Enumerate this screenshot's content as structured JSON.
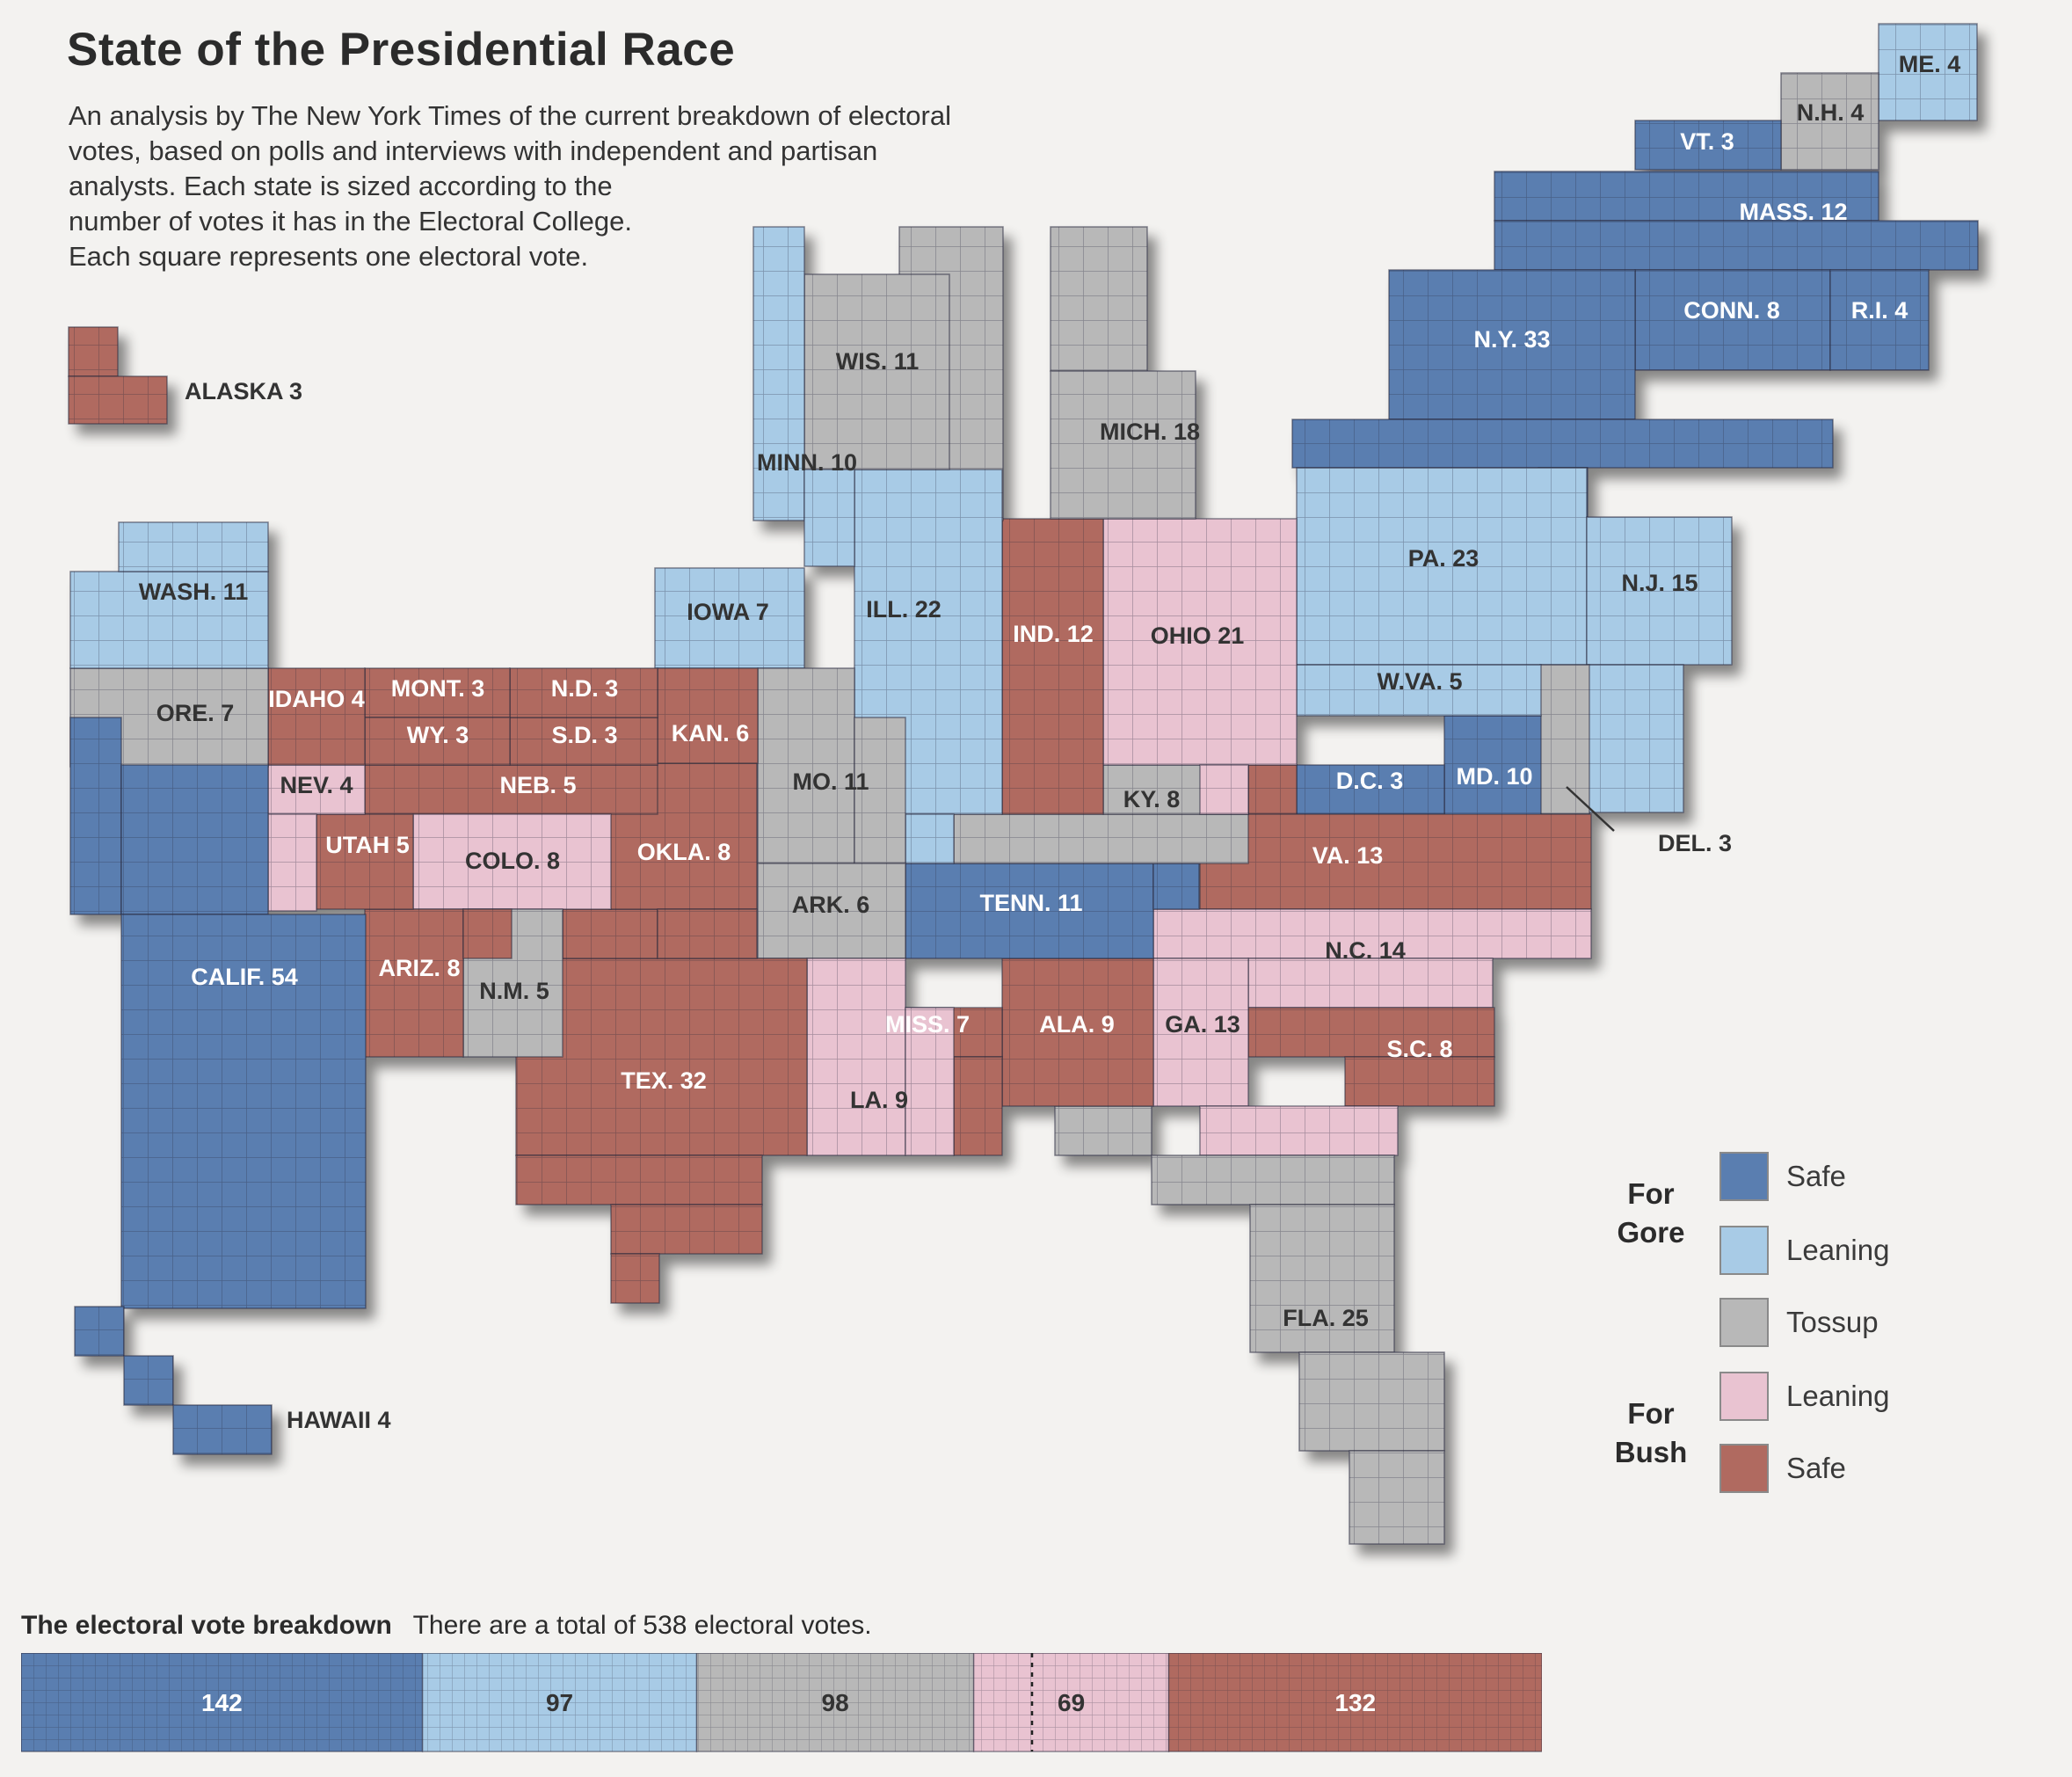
{
  "title": "State of the Presidential Race",
  "description": [
    "An analysis by The New York Times of the current breakdown of electoral",
    "votes, based on polls and interviews with independent and partisan",
    "analysts. Each state is sized according to the",
    "number of votes it has in the Electoral College.",
    "Each square represents one electoral vote."
  ],
  "colors": {
    "gore_safe": "#5a7eb0",
    "gore_leaning": "#a8cbe6",
    "tossup": "#b8b8b8",
    "bush_leaning": "#e9c3d1",
    "bush_safe": "#b06a60"
  },
  "legend": {
    "gore_heading": "For Gore",
    "bush_heading": "For Bush",
    "items": [
      {
        "key": "gore_safe",
        "label": "Safe"
      },
      {
        "key": "gore_leaning",
        "label": "Leaning"
      },
      {
        "key": "tossup",
        "label": "Tossup"
      },
      {
        "key": "bush_leaning",
        "label": "Leaning"
      },
      {
        "key": "bush_safe",
        "label": "Safe"
      }
    ]
  },
  "states": [
    {
      "label": "ME. 4",
      "status": "gore_leaning"
    },
    {
      "label": "N.H. 4",
      "status": "tossup"
    },
    {
      "label": "VT. 3",
      "status": "gore_safe"
    },
    {
      "label": "MASS. 12",
      "status": "gore_safe"
    },
    {
      "label": "CONN. 8",
      "status": "gore_safe"
    },
    {
      "label": "R.I. 4",
      "status": "gore_safe"
    },
    {
      "label": "N.Y. 33",
      "status": "gore_safe"
    },
    {
      "label": "PA. 23",
      "status": "gore_leaning"
    },
    {
      "label": "N.J. 15",
      "status": "gore_leaning"
    },
    {
      "label": "DEL. 3",
      "status": "tossup"
    },
    {
      "label": "MD. 10",
      "status": "gore_safe"
    },
    {
      "label": "D.C. 3",
      "status": "gore_safe"
    },
    {
      "label": "W.VA. 5",
      "status": "gore_leaning"
    },
    {
      "label": "VA. 13",
      "status": "bush_safe"
    },
    {
      "label": "N.C. 14",
      "status": "bush_leaning"
    },
    {
      "label": "S.C. 8",
      "status": "bush_safe"
    },
    {
      "label": "GA. 13",
      "status": "bush_leaning"
    },
    {
      "label": "FLA. 25",
      "status": "tossup"
    },
    {
      "label": "ALA. 9",
      "status": "bush_safe"
    },
    {
      "label": "MISS. 7",
      "status": "bush_safe"
    },
    {
      "label": "TENN. 11",
      "status": "gore_safe"
    },
    {
      "label": "KY. 8",
      "status": "tossup"
    },
    {
      "label": "OHIO 21",
      "status": "bush_leaning"
    },
    {
      "label": "IND. 12",
      "status": "bush_safe"
    },
    {
      "label": "MICH. 18",
      "status": "tossup"
    },
    {
      "label": "ILL. 22",
      "status": "gore_leaning"
    },
    {
      "label": "WIS. 11",
      "status": "tossup"
    },
    {
      "label": "MINN. 10",
      "status": "gore_leaning"
    },
    {
      "label": "IOWA 7",
      "status": "gore_leaning"
    },
    {
      "label": "MO. 11",
      "status": "tossup"
    },
    {
      "label": "ARK. 6",
      "status": "tossup"
    },
    {
      "label": "LA. 9",
      "status": "bush_leaning"
    },
    {
      "label": "TEX. 32",
      "status": "bush_safe"
    },
    {
      "label": "OKLA. 8",
      "status": "bush_safe"
    },
    {
      "label": "KAN. 6",
      "status": "bush_safe"
    },
    {
      "label": "NEB. 5",
      "status": "bush_safe"
    },
    {
      "label": "S.D. 3",
      "status": "bush_safe"
    },
    {
      "label": "N.D. 3",
      "status": "bush_safe"
    },
    {
      "label": "MONT. 3",
      "status": "bush_safe"
    },
    {
      "label": "WY. 3",
      "status": "bush_safe"
    },
    {
      "label": "COLO. 8",
      "status": "bush_leaning"
    },
    {
      "label": "N.M. 5",
      "status": "tossup"
    },
    {
      "label": "ARIZ. 8",
      "status": "bush_safe"
    },
    {
      "label": "UTAH 5",
      "status": "bush_safe"
    },
    {
      "label": "NEV. 4",
      "status": "bush_leaning"
    },
    {
      "label": "IDAHO 4",
      "status": "bush_safe"
    },
    {
      "label": "ORE. 7",
      "status": "tossup"
    },
    {
      "label": "WASH. 11",
      "status": "gore_leaning"
    },
    {
      "label": "CALIF. 54",
      "status": "gore_safe"
    },
    {
      "label": "ALASKA 3",
      "status": "bush_safe"
    },
    {
      "label": "HAWAII 4",
      "status": "gore_safe"
    }
  ],
  "breakdown": {
    "heading": "The electoral vote breakdown",
    "note": "There are a total of 538 electoral votes.",
    "segments": [
      {
        "key": "gore_safe",
        "value": 142,
        "label": "142"
      },
      {
        "key": "gore_leaning",
        "value": 97,
        "label": "97"
      },
      {
        "key": "tossup",
        "value": 98,
        "label": "98"
      },
      {
        "key": "bush_leaning",
        "value": 69,
        "label": "69"
      },
      {
        "key": "bush_safe",
        "value": 132,
        "label": "132"
      }
    ]
  }
}
